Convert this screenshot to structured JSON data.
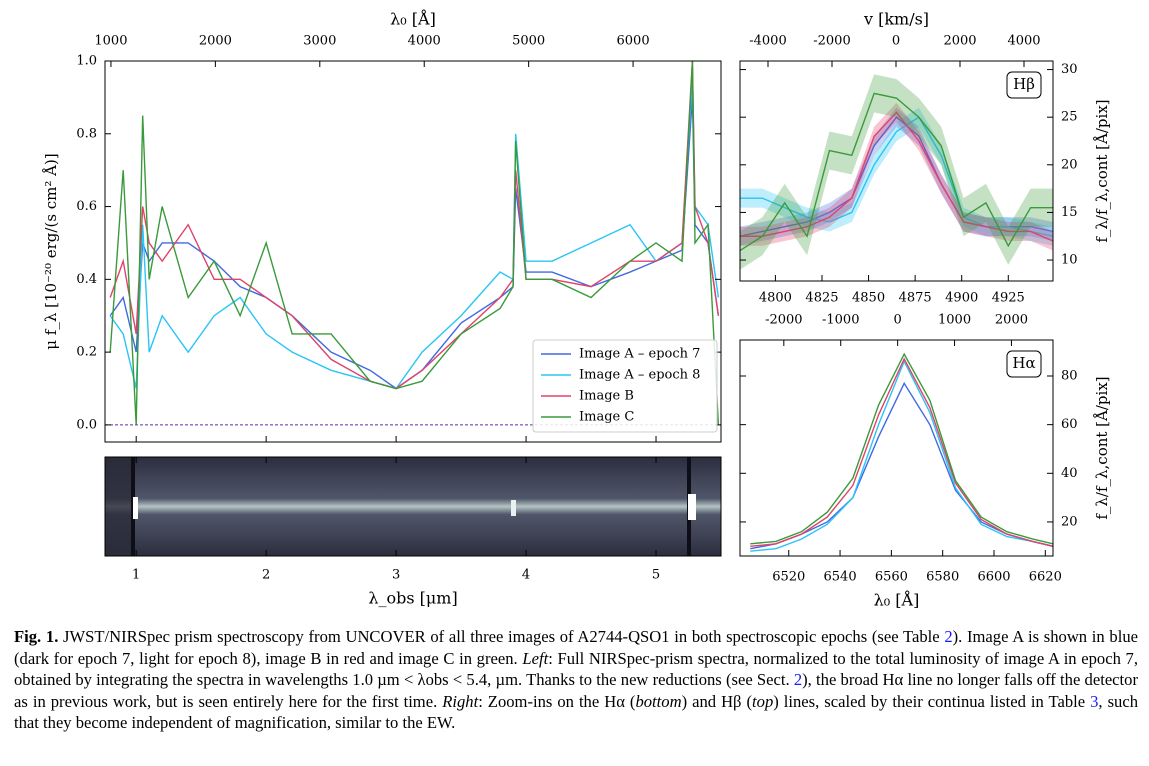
{
  "chart_data": [
    {
      "type": "line",
      "xlabel": "λ_obs [μm]",
      "x2label": "λ₀ [Å]",
      "ylabel": "μ f_λ [10⁻²⁰ erg/(s cm² Å)]",
      "xlim": [
        0.76,
        5.5
      ],
      "xticks": [
        1,
        2,
        3,
        4,
        5
      ],
      "x2lim": [
        943,
        6842
      ],
      "x2ticks": [
        1000,
        2000,
        3000,
        4000,
        5000,
        6000
      ],
      "ylim": [
        -0.047,
        1.0
      ],
      "yticks": [
        {
          "value": 0,
          "label": "0.0"
        },
        0.2,
        0.4,
        0.6,
        0.8,
        {
          "value": 1,
          "label": "1.0"
        }
      ],
      "y_axis_side": "left",
      "legend": "lower right",
      "reference_line": {
        "value": 0,
        "color": "#5b2fa0"
      },
      "x": [
        0.8,
        0.9,
        1.0,
        1.05,
        1.1,
        1.2,
        1.4,
        1.6,
        1.8,
        2.0,
        2.2,
        2.5,
        2.8,
        3.0,
        3.2,
        3.5,
        3.8,
        3.9,
        3.92,
        4.0,
        4.2,
        4.5,
        4.8,
        5.0,
        5.2,
        5.28,
        5.3,
        5.4,
        5.48
      ],
      "series": [
        {
          "name": "Image A – epoch 7",
          "color": "#4169e1",
          "values": [
            0.3,
            0.35,
            0.2,
            0.5,
            0.45,
            0.5,
            0.5,
            0.45,
            0.38,
            0.35,
            0.3,
            0.2,
            0.15,
            0.1,
            0.15,
            0.28,
            0.35,
            0.38,
            0.65,
            0.42,
            0.42,
            0.38,
            0.42,
            0.45,
            0.48,
            0.9,
            0.55,
            0.5,
            0.3
          ]
        },
        {
          "name": "Image A – epoch 8",
          "color": "#29c5f6",
          "values": [
            0.3,
            0.25,
            0.1,
            0.55,
            0.2,
            0.3,
            0.2,
            0.3,
            0.35,
            0.25,
            0.2,
            0.15,
            0.12,
            0.1,
            0.2,
            0.3,
            0.42,
            0.4,
            0.8,
            0.45,
            0.45,
            0.5,
            0.55,
            0.45,
            0.5,
            0.95,
            0.6,
            0.55,
            0.35
          ]
        },
        {
          "name": "Image B",
          "color": "#e0436a",
          "values": [
            0.35,
            0.45,
            0.25,
            0.6,
            0.5,
            0.45,
            0.55,
            0.4,
            0.4,
            0.35,
            0.3,
            0.18,
            0.12,
            0.1,
            0.15,
            0.25,
            0.35,
            0.4,
            0.7,
            0.4,
            0.4,
            0.38,
            0.45,
            0.45,
            0.5,
            1.0,
            0.6,
            0.5,
            0.3
          ]
        },
        {
          "name": "Image C",
          "color": "#3a9a3a",
          "values": [
            0.2,
            0.7,
            0.0,
            0.85,
            0.4,
            0.6,
            0.35,
            0.45,
            0.3,
            0.5,
            0.25,
            0.25,
            0.12,
            0.1,
            0.12,
            0.25,
            0.32,
            0.38,
            0.78,
            0.4,
            0.4,
            0.35,
            0.45,
            0.5,
            0.45,
            1.0,
            0.5,
            0.55,
            0.0
          ]
        }
      ]
    },
    {
      "type": "line",
      "label": "Hβ",
      "x2label": "v [km/s]",
      "ylabel": "f_λ/f_λ,cont [Å/pix]",
      "xlim": [
        4781,
        4949
      ],
      "xticks": [
        4800,
        4825,
        4850,
        4875,
        4900,
        4925
      ],
      "x2lim": [
        -4875,
        4906
      ],
      "x2ticks": [
        -4000,
        -2000,
        0,
        2000,
        4000
      ],
      "ylim": [
        7.8,
        30.9
      ],
      "yticks": [
        10,
        15,
        20,
        25,
        30
      ],
      "y_axis_side": "right",
      "x": [
        4781,
        4793,
        4805,
        4817,
        4829,
        4841,
        4853,
        4865,
        4877,
        4889,
        4901,
        4913,
        4925,
        4937,
        4949
      ],
      "series": [
        {
          "color": "#4169e1",
          "values": [
            12.5,
            13,
            13.5,
            14,
            15,
            16.5,
            22,
            25,
            23,
            18,
            14,
            13.5,
            13.5,
            13.5,
            13
          ],
          "errors": [
            1,
            1,
            1,
            1,
            1,
            1,
            1,
            1,
            1,
            1,
            1,
            1,
            1,
            1,
            1
          ]
        },
        {
          "color": "#29c5f6",
          "values": [
            16.5,
            16.5,
            15.5,
            14.5,
            14,
            15,
            20,
            23.5,
            25,
            21,
            14.5,
            13.5,
            13.5,
            13,
            12.5
          ],
          "errors": [
            1,
            1,
            1,
            1,
            1,
            1,
            1,
            1,
            1,
            1,
            1,
            1,
            1,
            1,
            1
          ]
        },
        {
          "color": "#e0436a",
          "values": [
            12.5,
            12.5,
            13,
            13.5,
            14.5,
            16.5,
            23,
            25.5,
            22.5,
            18,
            14,
            13.5,
            13,
            13,
            12
          ],
          "errors": [
            1,
            1,
            1,
            1,
            1,
            1,
            1,
            1,
            1,
            1,
            1,
            1,
            1,
            1,
            1
          ]
        },
        {
          "color": "#3a9a3a",
          "values": [
            11,
            12.5,
            16,
            12.5,
            21.5,
            21,
            27.5,
            27,
            25,
            22,
            14.5,
            16,
            11.5,
            15.5,
            15.5
          ],
          "errors": [
            2,
            2,
            2,
            2,
            2,
            2,
            2,
            2,
            2,
            2,
            2,
            2,
            2,
            2,
            2
          ]
        }
      ]
    },
    {
      "type": "line",
      "label": "Hα",
      "xlabel": "λ₀ [Å]",
      "x2label": "",
      "ylabel": "f_λ/f_λ,cont [Å/pix]",
      "xlim": [
        6501,
        6623
      ],
      "xticks": [
        6520,
        6540,
        6560,
        6580,
        6600,
        6620
      ],
      "x2lim": [
        -2770,
        2730
      ],
      "x2ticks": [
        -2000,
        -1000,
        0,
        1000,
        2000
      ],
      "ylim": [
        6,
        94.8
      ],
      "yticks": [
        20,
        40,
        60,
        80
      ],
      "y_axis_side": "right",
      "x": [
        6505,
        6515,
        6525,
        6535,
        6545,
        6555,
        6565,
        6575,
        6585,
        6595,
        6605,
        6615,
        6623
      ],
      "series": [
        {
          "color": "#4169e1",
          "values": [
            9,
            11,
            15,
            20,
            30,
            55,
            77,
            60,
            33,
            20,
            15,
            12,
            10
          ]
        },
        {
          "color": "#29c5f6",
          "values": [
            8,
            9,
            13,
            19,
            30,
            60,
            86,
            65,
            34,
            19,
            14,
            12,
            10
          ]
        },
        {
          "color": "#e0436a",
          "values": [
            10,
            11,
            15,
            22,
            35,
            64,
            87,
            67,
            36,
            21,
            15,
            12,
            10
          ]
        },
        {
          "color": "#3a9a3a",
          "values": [
            11,
            12,
            16,
            24,
            38,
            68,
            89,
            70,
            37,
            22,
            16,
            13,
            11
          ]
        }
      ]
    }
  ],
  "caption": {
    "label": "Fig. 1.",
    "segments": [
      " JWST/NIRSpec prism spectroscopy from UNCOVER of all three images of A2744-QSO1 in both spectroscopic epochs (see Table ",
      "2",
      "). Image A is shown in blue (dark for epoch 7, light for epoch 8), image B in red and image C in green. ",
      "Left",
      ": Full NIRSpec-prism spectra, normalized to the total luminosity of image A in epoch 7, obtained by integrating the spectra in wavelengths 1.0 µm < λobs < 5.4, µm. Thanks to the new reductions (see Sect. ",
      "2",
      "), the broad Hα line no longer falls off the detector as in previous work, but is seen entirely here for the first time. ",
      "Right",
      ": Zoom-ins on the Hα (",
      "bottom",
      ") and Hβ (",
      "top",
      ") lines, scaled by their continua listed in Table ",
      "3",
      ", such that they become independent of magnification, similar to the EW."
    ]
  }
}
